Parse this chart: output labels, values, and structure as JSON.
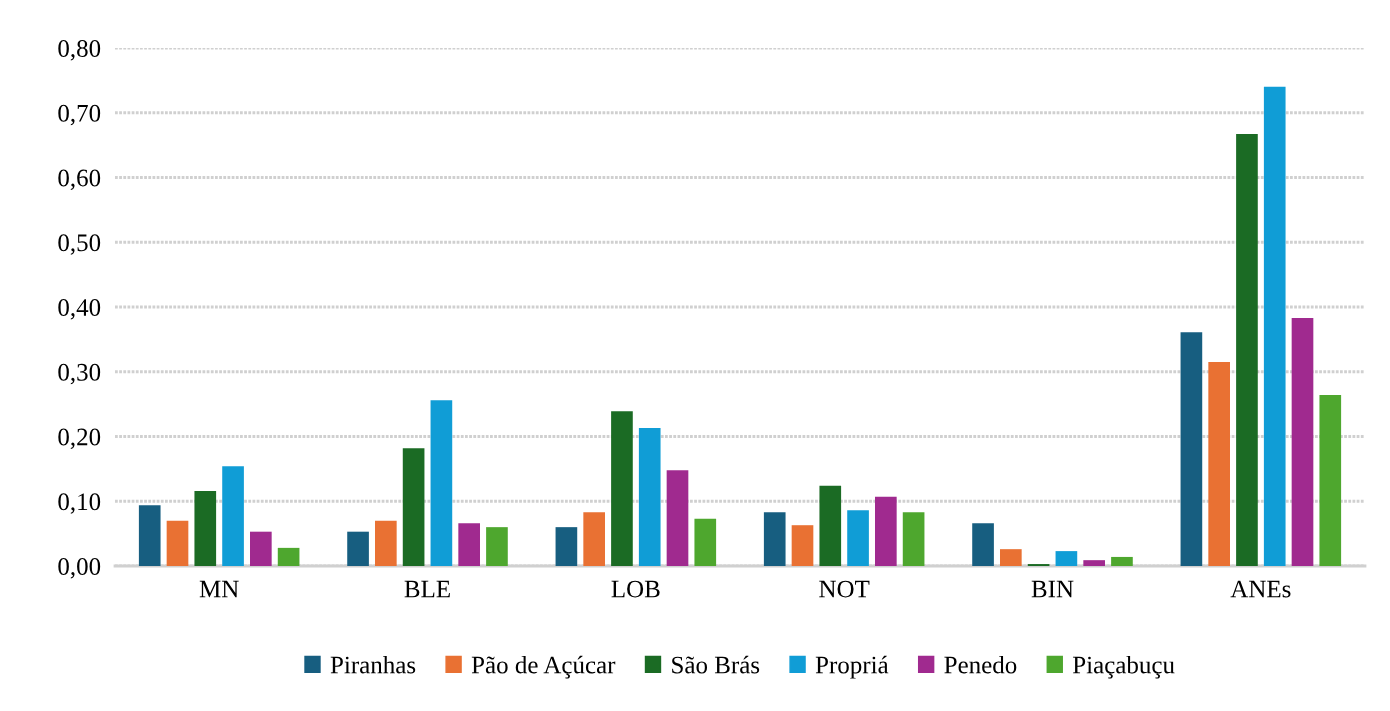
{
  "chart_data": {
    "type": "bar",
    "categories": [
      "MN",
      "BLE",
      "LOB",
      "NOT",
      "BIN",
      "ANEs"
    ],
    "series": [
      {
        "name": "Piranhas",
        "color": "#175e80",
        "values": [
          0.094,
          0.053,
          0.06,
          0.083,
          0.066,
          0.361
        ]
      },
      {
        "name": "Pão de Açúcar",
        "color": "#e97133",
        "values": [
          0.07,
          0.07,
          0.083,
          0.063,
          0.026,
          0.315
        ]
      },
      {
        "name": "São Brás",
        "color": "#1b6b24",
        "values": [
          0.116,
          0.182,
          0.239,
          0.124,
          0.003,
          0.667
        ]
      },
      {
        "name": "Propriá",
        "color": "#109dd6",
        "values": [
          0.154,
          0.256,
          0.213,
          0.086,
          0.023,
          0.74
        ]
      },
      {
        "name": "Penedo",
        "color": "#a02a8f",
        "values": [
          0.053,
          0.066,
          0.148,
          0.107,
          0.009,
          0.383
        ]
      },
      {
        "name": "Piaçabuçu",
        "color": "#4ea72e",
        "values": [
          0.028,
          0.06,
          0.073,
          0.083,
          0.014,
          0.264
        ]
      }
    ],
    "ylim": [
      0,
      0.8
    ],
    "yticks": [
      {
        "value": 0,
        "label": "0,00"
      },
      {
        "value": 0.1,
        "label": "0,10"
      },
      {
        "value": 0.2,
        "label": "0,20"
      },
      {
        "value": 0.3,
        "label": "0,30"
      },
      {
        "value": 0.4,
        "label": "0,40"
      },
      {
        "value": 0.5,
        "label": "0,50"
      },
      {
        "value": 0.6,
        "label": "0,60"
      },
      {
        "value": 0.7,
        "label": "0,70"
      },
      {
        "value": 0.8,
        "label": "0,80"
      }
    ],
    "grid": "y",
    "legend": "bottom"
  }
}
